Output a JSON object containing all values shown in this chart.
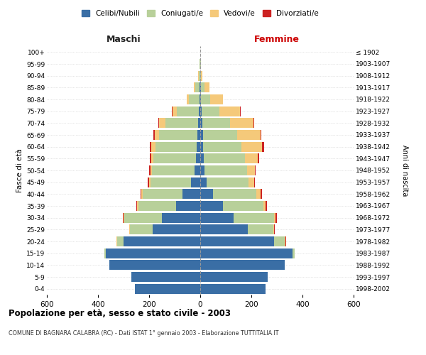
{
  "age_groups": [
    "0-4",
    "5-9",
    "10-14",
    "15-19",
    "20-24",
    "25-29",
    "30-34",
    "35-39",
    "40-44",
    "45-49",
    "50-54",
    "55-59",
    "60-64",
    "65-69",
    "70-74",
    "75-79",
    "80-84",
    "85-89",
    "90-94",
    "95-99",
    "100+"
  ],
  "birth_years": [
    "1998-2002",
    "1993-1997",
    "1988-1992",
    "1983-1987",
    "1978-1982",
    "1973-1977",
    "1968-1972",
    "1963-1967",
    "1958-1962",
    "1953-1957",
    "1948-1952",
    "1943-1947",
    "1938-1942",
    "1933-1937",
    "1928-1932",
    "1923-1927",
    "1918-1922",
    "1913-1917",
    "1908-1912",
    "1903-1907",
    "≤ 1902"
  ],
  "male": {
    "celibi": [
      255,
      270,
      355,
      370,
      300,
      185,
      150,
      95,
      70,
      35,
      22,
      18,
      14,
      12,
      8,
      5,
      2,
      2,
      0,
      0,
      0
    ],
    "coniugati": [
      0,
      0,
      0,
      5,
      25,
      90,
      148,
      148,
      155,
      160,
      168,
      165,
      160,
      148,
      128,
      88,
      42,
      18,
      5,
      2,
      1
    ],
    "vedovi": [
      0,
      0,
      0,
      0,
      2,
      2,
      2,
      3,
      5,
      5,
      5,
      8,
      18,
      18,
      25,
      15,
      10,
      5,
      2,
      1,
      0
    ],
    "divorziati": [
      0,
      0,
      0,
      0,
      2,
      2,
      3,
      5,
      3,
      5,
      5,
      5,
      5,
      5,
      3,
      2,
      0,
      0,
      0,
      0,
      0
    ]
  },
  "female": {
    "nubili": [
      255,
      265,
      330,
      360,
      290,
      185,
      130,
      88,
      50,
      25,
      18,
      15,
      12,
      10,
      8,
      5,
      3,
      2,
      0,
      0,
      0
    ],
    "coniugate": [
      0,
      0,
      0,
      10,
      40,
      100,
      160,
      158,
      170,
      165,
      165,
      160,
      150,
      135,
      110,
      70,
      35,
      15,
      3,
      2,
      1
    ],
    "vedove": [
      0,
      0,
      0,
      0,
      3,
      5,
      5,
      10,
      15,
      20,
      30,
      50,
      80,
      90,
      90,
      80,
      50,
      20,
      5,
      2,
      0
    ],
    "divorziate": [
      0,
      0,
      0,
      0,
      2,
      3,
      5,
      5,
      8,
      5,
      5,
      5,
      8,
      5,
      2,
      2,
      0,
      0,
      0,
      0,
      0
    ]
  },
  "colors": {
    "celibi_nubili": "#3a6ea5",
    "coniugati": "#b8d09a",
    "vedovi": "#f5c97a",
    "divorziati": "#cc2222"
  },
  "xlim": 600,
  "title": "Popolazione per età, sesso e stato civile - 2003",
  "subtitle": "COMUNE DI BAGNARA CALABRA (RC) - Dati ISTAT 1° gennaio 2003 - Elaborazione TUTTITALIA.IT",
  "ylabel": "Fasce di età",
  "ylabel_right": "Anni di nascita",
  "xlabel_left": "Maschi",
  "xlabel_right": "Femmine",
  "bg_color": "#ffffff",
  "grid_color": "#cccccc"
}
